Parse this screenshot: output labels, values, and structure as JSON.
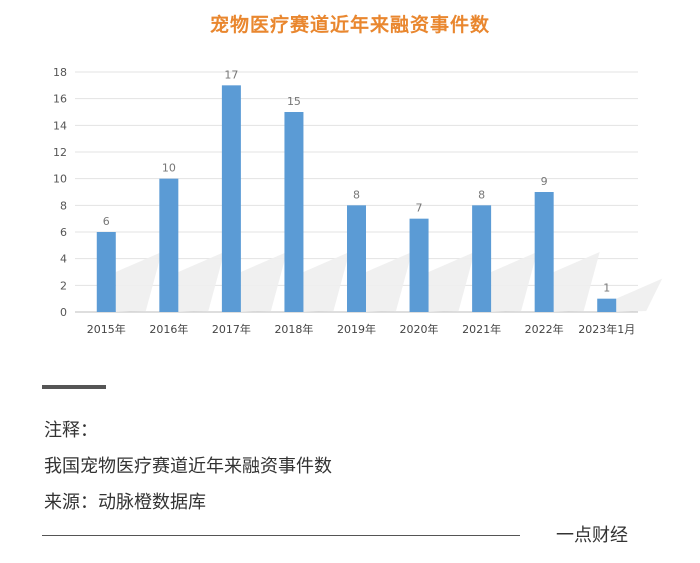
{
  "chart_data": {
    "type": "bar",
    "title": "宠物医疗赛道近年来融资事件数",
    "categories": [
      "2015年",
      "2016年",
      "2017年",
      "2018年",
      "2019年",
      "2020年",
      "2021年",
      "2022年",
      "2023年1月"
    ],
    "values": [
      6,
      10,
      17,
      15,
      8,
      7,
      8,
      9,
      1
    ],
    "ylim": [
      0,
      18
    ],
    "yticks": [
      0,
      2,
      4,
      6,
      8,
      10,
      12,
      14,
      16,
      18
    ],
    "grid": true,
    "bar_color": "#5b9bd5",
    "data_labels": true
  },
  "notes": {
    "heading": "注释：",
    "line1": "我国宠物医疗赛道近年来融资事件数",
    "source": "来源：动脉橙数据库"
  },
  "brand": "一点财经",
  "colors": {
    "title": "#e9872f",
    "bar": "#5b9bd5",
    "grid": "#e3e3e3"
  }
}
